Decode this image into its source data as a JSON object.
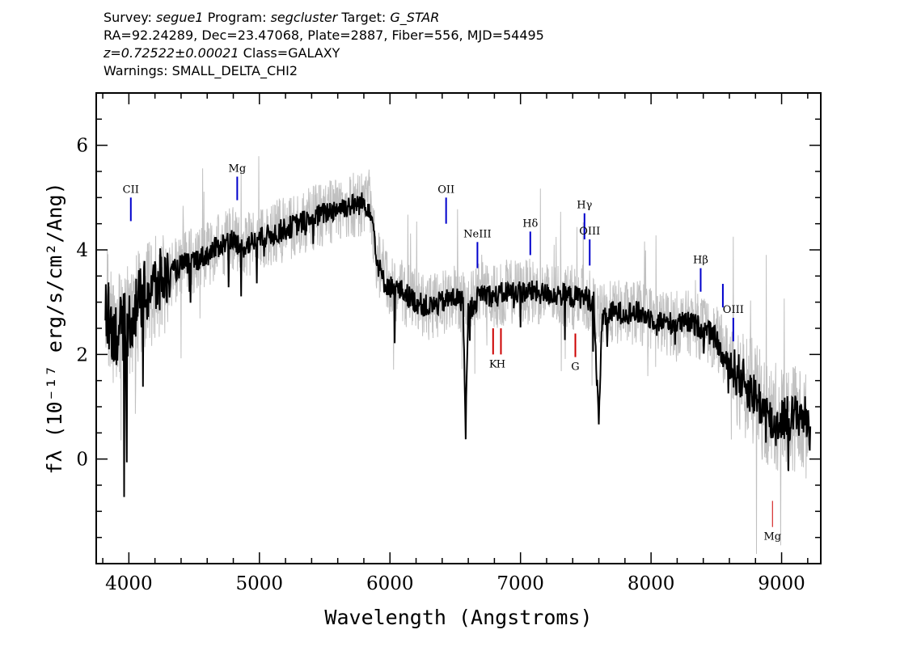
{
  "header": {
    "line1": {
      "survey_key": "Survey:",
      "survey": "segue1",
      "program_key": "Program:",
      "program": "segcluster",
      "target_key": "Target:",
      "target": "G_STAR"
    },
    "line2": "RA=92.24289, Dec=23.47068, Plate=2887, Fiber=556, MJD=54495",
    "line3": {
      "z": "z=0.72522±0.00021",
      "class": "Class=GALAXY"
    },
    "line4": "Warnings: SMALL_DELTA_CHI2"
  },
  "chart_data": {
    "type": "line",
    "title": "",
    "xlabel": "Wavelength (Angstroms)",
    "ylabel": "fλ (10⁻¹⁷ erg/s/cm²/Ang)",
    "xlim": [
      3750,
      9300
    ],
    "ylim": [
      -2.0,
      7.0
    ],
    "x_ticks": [
      4000,
      5000,
      6000,
      7000,
      8000,
      9000
    ],
    "y_ticks": [
      0,
      2,
      4,
      6
    ],
    "colors": {
      "smoothed": "#000000",
      "raw": "#c0c0c0",
      "emission": "#0000cc",
      "absorption": "#cc0000"
    },
    "series": [
      {
        "style": "black smoothed flux",
        "x": [
          3820,
          3860,
          3900,
          3950,
          4000,
          4050,
          4100,
          4150,
          4200,
          4300,
          4400,
          4500,
          4600,
          4700,
          4800,
          4850,
          4900,
          5000,
          5100,
          5200,
          5300,
          5400,
          5500,
          5600,
          5700,
          5800,
          5850,
          5880,
          5900,
          5950,
          6000,
          6100,
          6200,
          6300,
          6400,
          6500,
          6560,
          6580,
          6600,
          6700,
          6800,
          6900,
          7000,
          7100,
          7200,
          7300,
          7400,
          7500,
          7560,
          7600,
          7620,
          7700,
          7800,
          7900,
          8000,
          8100,
          8200,
          8300,
          8400,
          8500,
          8550,
          8600,
          8700,
          8800,
          8900,
          8950,
          9000,
          9100,
          9150,
          9200,
          9220
        ],
        "y": [
          3.0,
          2.6,
          2.4,
          2.5,
          2.6,
          2.9,
          3.1,
          3.2,
          3.3,
          3.5,
          3.7,
          3.8,
          3.9,
          4.1,
          4.2,
          4.0,
          4.1,
          4.2,
          4.3,
          4.4,
          4.5,
          4.6,
          4.7,
          4.8,
          4.85,
          4.9,
          4.8,
          4.3,
          3.8,
          3.4,
          3.3,
          3.2,
          3.0,
          2.9,
          3.0,
          3.1,
          3.0,
          0.6,
          2.8,
          3.2,
          3.1,
          3.2,
          3.2,
          3.2,
          3.15,
          3.15,
          3.1,
          3.1,
          3.0,
          0.6,
          2.6,
          2.8,
          2.8,
          2.8,
          2.7,
          2.6,
          2.6,
          2.6,
          2.5,
          2.3,
          1.9,
          1.8,
          1.5,
          1.2,
          0.8,
          0.6,
          0.8,
          0.8,
          0.9,
          0.7,
          0.5
        ]
      },
      {
        "style": "grey raw flux",
        "x": [
          3820,
          3900,
          4000,
          4100,
          4200,
          4300,
          4400,
          4500,
          4600,
          4700,
          4800,
          4900,
          5000,
          5100,
          5200,
          5300,
          5400,
          5500,
          5600,
          5700,
          5800,
          5850,
          5900,
          6000,
          6100,
          6200,
          6300,
          6400,
          6500,
          6600,
          6700,
          6800,
          6900,
          7000,
          7100,
          7200,
          7300,
          7400,
          7500,
          7600,
          7700,
          7800,
          7900,
          8000,
          8100,
          8200,
          8300,
          8400,
          8500,
          8600,
          8700,
          8800,
          8900,
          9000,
          9100,
          9200
        ],
        "y": [
          3.0,
          2.4,
          2.6,
          3.1,
          3.3,
          3.5,
          3.7,
          3.8,
          3.9,
          4.1,
          4.2,
          4.1,
          4.2,
          4.3,
          4.4,
          4.5,
          4.6,
          4.7,
          4.8,
          4.85,
          4.9,
          4.8,
          3.8,
          3.3,
          3.2,
          3.0,
          2.9,
          3.0,
          3.1,
          2.9,
          3.2,
          3.1,
          3.2,
          3.2,
          3.2,
          3.15,
          3.15,
          3.1,
          3.1,
          2.7,
          2.8,
          2.8,
          2.8,
          2.7,
          2.6,
          2.6,
          2.6,
          2.5,
          2.3,
          1.9,
          1.5,
          1.2,
          0.8,
          0.8,
          0.8,
          0.6
        ]
      }
    ],
    "line_markers": [
      {
        "label": "CII",
        "x": 4015,
        "y1": 4.55,
        "y2": 5.0,
        "kind": "emission"
      },
      {
        "label": "Mg",
        "x": 4830,
        "y1": 4.95,
        "y2": 5.4,
        "kind": "emission"
      },
      {
        "label": "OII",
        "x": 6430,
        "y1": 4.5,
        "y2": 5.0,
        "kind": "emission"
      },
      {
        "label": "NeIII",
        "x": 6670,
        "y1": 3.65,
        "y2": 4.15,
        "kind": "emission"
      },
      {
        "label": "Hδ",
        "x": 7075,
        "y1": 3.9,
        "y2": 4.35,
        "kind": "emission"
      },
      {
        "label": "Hγ",
        "x": 7490,
        "y1": 4.2,
        "y2": 4.7,
        "kind": "emission"
      },
      {
        "label": "OIII",
        "x": 7530,
        "y1": 3.7,
        "y2": 4.2,
        "kind": "emission"
      },
      {
        "label": "Hβ",
        "x": 8380,
        "y1": 3.2,
        "y2": 3.65,
        "kind": "emission"
      },
      {
        "label": "",
        "x": 8550,
        "y1": 2.9,
        "y2": 3.35,
        "kind": "emission"
      },
      {
        "label": "OIII",
        "x": 8630,
        "y1": 2.25,
        "y2": 2.7,
        "kind": "emission"
      },
      {
        "label": "K",
        "x": 6790,
        "y1": 2.0,
        "y2": 2.5,
        "kind": "absorption"
      },
      {
        "label": "H",
        "x": 6850,
        "y1": 2.0,
        "y2": 2.5,
        "kind": "absorption"
      },
      {
        "label": "G",
        "x": 7420,
        "y1": 1.95,
        "y2": 2.4,
        "kind": "absorption"
      },
      {
        "label": "Mg",
        "x": 8930,
        "y1": -1.3,
        "y2": -0.8,
        "kind": "absorption"
      }
    ]
  }
}
